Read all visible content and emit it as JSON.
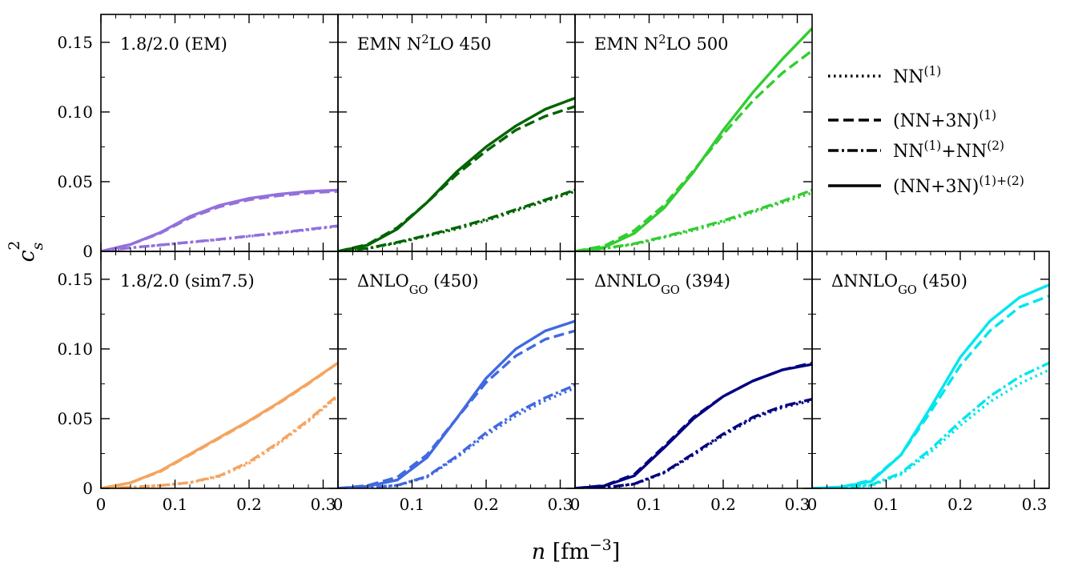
{
  "chart_data": {
    "type": "line",
    "xlabel_main": "n",
    "xlabel_unit": "[fm",
    "xlabel_exp": "−3",
    "xlabel_close": "]",
    "ylabel_main": "c",
    "ylabel_sub": "s",
    "ylabel_sup": "2",
    "xlim": [
      0,
      0.32
    ],
    "ylim": [
      0,
      0.17
    ],
    "x_ticks": [
      {
        "v": 0,
        "label": "0"
      },
      {
        "v": 0.1,
        "label": "0.1"
      },
      {
        "v": 0.2,
        "label": "0.2"
      },
      {
        "v": 0.3,
        "label": "0.3"
      }
    ],
    "y_ticks": [
      {
        "v": 0,
        "label": "0"
      },
      {
        "v": 0.05,
        "label": "0.05"
      },
      {
        "v": 0.1,
        "label": "0.10"
      },
      {
        "v": 0.15,
        "label": "0.15"
      }
    ],
    "x": [
      0.0,
      0.04,
      0.08,
      0.12,
      0.16,
      0.2,
      0.24,
      0.28,
      0.32
    ],
    "legend": [
      {
        "key": "nn1",
        "style": "dotted",
        "base": "NN",
        "sup": "(1)",
        "rest": "",
        "sup2": ""
      },
      {
        "key": "nn3n1",
        "style": "dashed",
        "base": "(NN+3N)",
        "sup": "(1)",
        "rest": "",
        "sup2": ""
      },
      {
        "key": "nn12",
        "style": "dashdot",
        "base": "NN",
        "sup": "(1)",
        "rest": "+NN",
        "sup2": "(2)"
      },
      {
        "key": "nn3n12",
        "style": "solid",
        "base": "(NN+3N)",
        "sup": "(1)+(2)",
        "rest": "",
        "sup2": ""
      }
    ],
    "panels": [
      {
        "title": {
          "pre": "1.8/2.0 (EM)",
          "sup": "",
          "post": "",
          "sub": "",
          "tail": ""
        },
        "color": "#9370DB",
        "series": [
          {
            "name": "NN(1)",
            "style": "dotted",
            "values": [
              0.0,
              0.0025,
              0.0045,
              0.0065,
              0.0085,
              0.0108,
              0.013,
              0.0155,
              0.018
            ]
          },
          {
            "name": "(NN+3N)(1)",
            "style": "dashed",
            "values": [
              0.0,
              0.005,
              0.013,
              0.024,
              0.032,
              0.037,
              0.04,
              0.042,
              0.043
            ]
          },
          {
            "name": "NN(1)+NN(2)",
            "style": "dashdot",
            "values": [
              0.0,
              0.0026,
              0.0046,
              0.0066,
              0.0087,
              0.011,
              0.0133,
              0.0158,
              0.0183
            ]
          },
          {
            "name": "(NN+3N)(1)+(2)",
            "style": "solid",
            "values": [
              0.0,
              0.005,
              0.0135,
              0.025,
              0.033,
              0.038,
              0.041,
              0.043,
              0.044
            ]
          }
        ]
      },
      {
        "title": {
          "pre": "EMN N",
          "sup": "2",
          "post": "LO 450",
          "sub": "",
          "tail": ""
        },
        "color": "#006400",
        "series": [
          {
            "name": "NN(1)",
            "style": "dotted",
            "values": [
              0.0,
              0.002,
              0.006,
              0.011,
              0.016,
              0.022,
              0.029,
              0.036,
              0.043
            ]
          },
          {
            "name": "(NN+3N)(1)",
            "style": "dashed",
            "values": [
              0.0,
              0.005,
              0.017,
              0.035,
              0.055,
              0.072,
              0.087,
              0.097,
              0.104
            ]
          },
          {
            "name": "NN(1)+NN(2)",
            "style": "dashdot",
            "values": [
              0.0,
              0.0022,
              0.0065,
              0.0115,
              0.017,
              0.023,
              0.03,
              0.037,
              0.044
            ]
          },
          {
            "name": "(NN+3N)(1)+(2)",
            "style": "solid",
            "values": [
              0.0,
              0.0045,
              0.016,
              0.035,
              0.057,
              0.075,
              0.09,
              0.102,
              0.11
            ]
          }
        ]
      },
      {
        "title": {
          "pre": "EMN N",
          "sup": "2",
          "post": "LO 500",
          "sub": "",
          "tail": ""
        },
        "color": "#32CD32",
        "series": [
          {
            "name": "NN(1)",
            "style": "dotted",
            "values": [
              0.0,
              0.002,
              0.005,
              0.01,
              0.015,
              0.021,
              0.028,
              0.035,
              0.042
            ]
          },
          {
            "name": "(NN+3N)(1)",
            "style": "dashed",
            "values": [
              0.0,
              0.004,
              0.015,
              0.033,
              0.058,
              0.084,
              0.108,
              0.128,
              0.144
            ]
          },
          {
            "name": "NN(1)+NN(2)",
            "style": "dashdot",
            "values": [
              0.0,
              0.0022,
              0.0055,
              0.0105,
              0.016,
              0.022,
              0.029,
              0.036,
              0.044
            ]
          },
          {
            "name": "(NN+3N)(1)+(2)",
            "style": "solid",
            "values": [
              0.0,
              0.003,
              0.013,
              0.031,
              0.057,
              0.087,
              0.114,
              0.138,
              0.16
            ]
          }
        ]
      },
      {
        "title": {
          "pre": "1.8/2.0 (sim7.5)",
          "sup": "",
          "post": "",
          "sub": "",
          "tail": ""
        },
        "color": "#F4A460",
        "series": [
          {
            "name": "NN(1)",
            "style": "dotted",
            "values": [
              0.0,
              0.0008,
              0.002,
              0.004,
              0.0085,
              0.018,
              0.032,
              0.048,
              0.066
            ]
          },
          {
            "name": "(NN+3N)(1)",
            "style": "dashed",
            "values": [
              0.0,
              0.004,
              0.012,
              0.024,
              0.036,
              0.048,
              0.061,
              0.075,
              0.09
            ]
          },
          {
            "name": "NN(1)+NN(2)",
            "style": "dashdot",
            "values": [
              0.0,
              0.0008,
              0.002,
              0.0042,
              0.009,
              0.019,
              0.033,
              0.049,
              0.067
            ]
          },
          {
            "name": "(NN+3N)(1)+(2)",
            "style": "solid",
            "values": [
              0.0,
              0.004,
              0.0125,
              0.0245,
              0.0365,
              0.0485,
              0.0615,
              0.0755,
              0.09
            ]
          }
        ]
      },
      {
        "title": {
          "pre": "ΔNLO",
          "sup": "",
          "post": "",
          "sub": "GO",
          "tail": " (450)"
        },
        "color": "#4169E1",
        "series": [
          {
            "name": "NN(1)",
            "style": "dotted",
            "values": [
              0.0,
              0.0005,
              0.002,
              0.008,
              0.022,
              0.038,
              0.052,
              0.063,
              0.072
            ]
          },
          {
            "name": "(NN+3N)(1)",
            "style": "dashed",
            "values": [
              0.0,
              0.002,
              0.008,
              0.024,
              0.05,
              0.076,
              0.095,
              0.107,
              0.113
            ]
          },
          {
            "name": "NN(1)+NN(2)",
            "style": "dashdot",
            "values": [
              0.0,
              0.0005,
              0.0022,
              0.0085,
              0.023,
              0.04,
              0.054,
              0.065,
              0.074
            ]
          },
          {
            "name": "(NN+3N)(1)+(2)",
            "style": "solid",
            "values": [
              0.0,
              0.0015,
              0.006,
              0.022,
              0.05,
              0.079,
              0.1,
              0.113,
              0.12
            ]
          }
        ]
      },
      {
        "title": {
          "pre": "ΔNNLO",
          "sup": "",
          "post": "",
          "sub": "GO",
          "tail": " (394)"
        },
        "color": "#000080",
        "series": [
          {
            "name": "NN(1)",
            "style": "dotted",
            "values": [
              0.0,
              0.0005,
              0.003,
              0.011,
              0.024,
              0.038,
              0.05,
              0.058,
              0.063
            ]
          },
          {
            "name": "(NN+3N)(1)",
            "style": "dashed",
            "values": [
              0.0,
              0.002,
              0.01,
              0.03,
              0.051,
              0.066,
              0.077,
              0.085,
              0.09
            ]
          },
          {
            "name": "NN(1)+NN(2)",
            "style": "dashdot",
            "values": [
              0.0,
              0.0006,
              0.0032,
              0.0115,
              0.025,
              0.039,
              0.051,
              0.059,
              0.064
            ]
          },
          {
            "name": "(NN+3N)(1)+(2)",
            "style": "solid",
            "values": [
              0.0,
              0.0018,
              0.009,
              0.029,
              0.05,
              0.066,
              0.077,
              0.085,
              0.089
            ]
          }
        ]
      },
      {
        "title": {
          "pre": "ΔNNLO",
          "sup": "",
          "post": "",
          "sub": "GO",
          "tail": " (450)"
        },
        "color": "#00E5EE",
        "series": [
          {
            "name": "NN(1)",
            "style": "dotted",
            "values": [
              0.0,
              0.0005,
              0.002,
              0.01,
              0.026,
              0.045,
              0.062,
              0.075,
              0.085
            ]
          },
          {
            "name": "(NN+3N)(1)",
            "style": "dashed",
            "values": [
              0.0,
              0.001,
              0.006,
              0.024,
              0.055,
              0.088,
              0.113,
              0.13,
              0.138
            ]
          },
          {
            "name": "NN(1)+NN(2)",
            "style": "dashdot",
            "values": [
              0.0,
              0.0006,
              0.0025,
              0.011,
              0.028,
              0.048,
              0.066,
              0.08,
              0.09
            ]
          },
          {
            "name": "(NN+3N)(1)+(2)",
            "style": "solid",
            "values": [
              0.0,
              0.001,
              0.005,
              0.024,
              0.058,
              0.094,
              0.12,
              0.137,
              0.146
            ]
          }
        ]
      }
    ]
  }
}
